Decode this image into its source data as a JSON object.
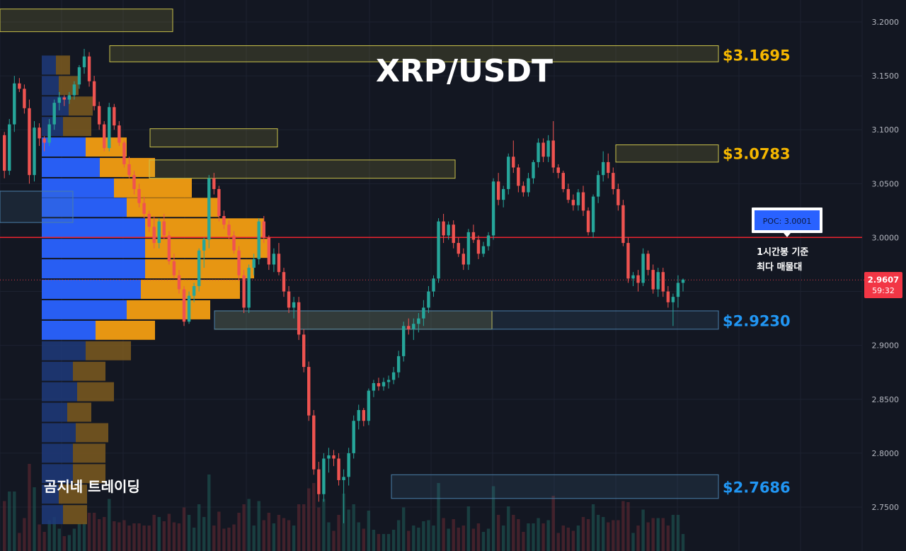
{
  "chart_data": {
    "type": "candlestick",
    "title": "XRP/USDT",
    "watermark": "곰지네 트레이딩",
    "ylim": [
      2.725,
      3.225
    ],
    "y_ticks": [
      "3.2000",
      "3.1500",
      "3.1000",
      "3.0500",
      "3.0000",
      "2.9500",
      "2.9000",
      "2.8500",
      "2.8000",
      "2.7500"
    ],
    "last_price": "2.9607",
    "countdown": "59:32",
    "poc": {
      "label": "POC: 3.0001",
      "value": 3.0001,
      "note_line1": "1시간봉 기준",
      "note_line2": "최다 매물대"
    },
    "levels": [
      {
        "label": "$3.1695",
        "value": 3.1695,
        "color": "#f5b700"
      },
      {
        "label": "$3.0783",
        "value": 3.0783,
        "color": "#f5b700"
      },
      {
        "label": "$2.9230",
        "value": 2.923,
        "color": "#2196f3"
      },
      {
        "label": "$2.7686",
        "value": 2.7686,
        "color": "#2196f3"
      }
    ],
    "candles": [
      [
        3.095,
        3.098,
        3.055,
        3.062
      ],
      [
        3.062,
        3.11,
        3.058,
        3.105
      ],
      [
        3.105,
        3.15,
        3.098,
        3.143
      ],
      [
        3.143,
        3.148,
        3.135,
        3.138
      ],
      [
        3.138,
        3.142,
        3.115,
        3.12
      ],
      [
        3.12,
        3.128,
        3.05,
        3.058
      ],
      [
        3.058,
        3.108,
        3.052,
        3.102
      ],
      [
        3.102,
        3.106,
        3.085,
        3.092
      ],
      [
        3.092,
        3.094,
        3.08,
        3.088
      ],
      [
        3.088,
        3.11,
        3.085,
        3.105
      ],
      [
        3.105,
        3.128,
        3.1,
        3.125
      ],
      [
        3.125,
        3.135,
        3.118,
        3.13
      ],
      [
        3.13,
        3.132,
        3.122,
        3.128
      ],
      [
        3.128,
        3.135,
        3.124,
        3.132
      ],
      [
        3.132,
        3.145,
        3.128,
        3.142
      ],
      [
        3.142,
        3.16,
        3.138,
        3.158
      ],
      [
        3.158,
        3.175,
        3.152,
        3.168
      ],
      [
        3.168,
        3.172,
        3.14,
        3.145
      ],
      [
        3.145,
        3.15,
        3.118,
        3.122
      ],
      [
        3.122,
        3.126,
        3.1,
        3.105
      ],
      [
        3.105,
        3.108,
        3.08,
        3.083
      ],
      [
        3.083,
        3.125,
        3.08,
        3.121
      ],
      [
        3.121,
        3.124,
        3.1,
        3.104
      ],
      [
        3.104,
        3.108,
        3.085,
        3.088
      ],
      [
        3.088,
        3.09,
        3.065,
        3.068
      ],
      [
        3.068,
        3.075,
        3.055,
        3.058
      ],
      [
        3.058,
        3.062,
        3.04,
        3.045
      ],
      [
        3.045,
        3.05,
        3.028,
        3.032
      ],
      [
        3.032,
        3.038,
        3.018,
        3.022
      ],
      [
        3.022,
        3.025,
        3.005,
        3.01
      ],
      [
        3.01,
        3.02,
        2.99,
        2.995
      ],
      [
        2.995,
        3.018,
        2.99,
        3.015
      ],
      [
        3.015,
        3.022,
        2.998,
        3.002
      ],
      [
        3.002,
        3.006,
        2.975,
        2.978
      ],
      [
        2.978,
        2.985,
        2.962,
        2.965
      ],
      [
        2.965,
        2.97,
        2.948,
        2.952
      ],
      [
        2.952,
        2.955,
        2.918,
        2.922
      ],
      [
        2.922,
        2.95,
        2.92,
        2.946
      ],
      [
        2.946,
        2.958,
        2.94,
        2.955
      ],
      [
        2.955,
        2.99,
        2.95,
        2.988
      ],
      [
        2.988,
        3.0,
        2.972,
        2.998
      ],
      [
        2.998,
        3.058,
        2.99,
        3.055
      ],
      [
        3.055,
        3.06,
        3.04,
        3.045
      ],
      [
        3.045,
        3.048,
        3.015,
        3.02
      ],
      [
        3.02,
        3.025,
        3.008,
        3.012
      ],
      [
        3.012,
        3.016,
        2.998,
        3.002
      ],
      [
        3.002,
        3.006,
        2.985,
        2.988
      ],
      [
        2.988,
        2.992,
        2.96,
        2.965
      ],
      [
        2.965,
        2.97,
        2.93,
        2.935
      ],
      [
        2.935,
        2.975,
        2.93,
        2.972
      ],
      [
        2.972,
        2.985,
        2.965,
        2.98
      ],
      [
        2.98,
        3.018,
        2.975,
        3.015
      ],
      [
        3.015,
        3.02,
        2.995,
        3.0
      ],
      [
        3.0,
        3.002,
        2.97,
        2.975
      ],
      [
        2.975,
        2.99,
        2.968,
        2.985
      ],
      [
        2.985,
        2.995,
        2.965,
        2.968
      ],
      [
        2.968,
        2.972,
        2.945,
        2.95
      ],
      [
        2.95,
        2.955,
        2.93,
        2.935
      ],
      [
        2.935,
        2.945,
        2.925,
        2.94
      ],
      [
        2.94,
        2.945,
        2.905,
        2.91
      ],
      [
        2.91,
        2.915,
        2.875,
        2.88
      ],
      [
        2.88,
        2.885,
        2.83,
        2.835
      ],
      [
        2.835,
        2.84,
        2.78,
        2.785
      ],
      [
        2.785,
        2.792,
        2.755,
        2.762
      ],
      [
        2.762,
        2.8,
        2.755,
        2.795
      ],
      [
        2.795,
        2.805,
        2.782,
        2.798
      ],
      [
        2.798,
        2.803,
        2.788,
        2.795
      ],
      [
        2.795,
        2.8,
        2.77,
        2.775
      ],
      [
        2.775,
        2.785,
        2.735,
        2.778
      ],
      [
        2.778,
        2.805,
        2.77,
        2.8
      ],
      [
        2.8,
        2.835,
        2.795,
        2.83
      ],
      [
        2.83,
        2.845,
        2.822,
        2.84
      ],
      [
        2.84,
        2.842,
        2.825,
        2.83
      ],
      [
        2.83,
        2.86,
        2.826,
        2.858
      ],
      [
        2.858,
        2.868,
        2.852,
        2.865
      ],
      [
        2.865,
        2.87,
        2.858,
        2.862
      ],
      [
        2.862,
        2.87,
        2.858,
        2.866
      ],
      [
        2.866,
        2.872,
        2.86,
        2.868
      ],
      [
        2.868,
        2.88,
        2.864,
        2.875
      ],
      [
        2.875,
        2.895,
        2.87,
        2.89
      ],
      [
        2.89,
        2.922,
        2.885,
        2.918
      ],
      [
        2.918,
        2.925,
        2.91,
        2.915
      ],
      [
        2.915,
        2.925,
        2.905,
        2.92
      ],
      [
        2.92,
        2.93,
        2.912,
        2.925
      ],
      [
        2.925,
        2.942,
        2.918,
        2.935
      ],
      [
        2.935,
        2.955,
        2.93,
        2.95
      ],
      [
        2.95,
        2.965,
        2.945,
        2.962
      ],
      [
        2.962,
        3.018,
        2.958,
        3.015
      ],
      [
        3.015,
        3.022,
        2.995,
        3.002
      ],
      [
        3.002,
        3.015,
        2.998,
        3.012
      ],
      [
        3.012,
        3.016,
        2.99,
        2.995
      ],
      [
        2.995,
        3.0,
        2.982,
        2.985
      ],
      [
        2.985,
        2.99,
        2.97,
        2.975
      ],
      [
        2.975,
        3.008,
        2.97,
        3.005
      ],
      [
        3.005,
        3.012,
        2.995,
        2.998
      ],
      [
        2.998,
        3.002,
        2.98,
        2.985
      ],
      [
        2.985,
        2.996,
        2.982,
        2.992
      ],
      [
        2.992,
        3.005,
        2.988,
        3.002
      ],
      [
        3.002,
        3.055,
        2.998,
        3.052
      ],
      [
        3.052,
        3.06,
        3.03,
        3.035
      ],
      [
        3.035,
        3.048,
        3.028,
        3.045
      ],
      [
        3.045,
        3.078,
        3.04,
        3.075
      ],
      [
        3.075,
        3.09,
        3.06,
        3.065
      ],
      [
        3.065,
        3.068,
        3.042,
        3.048
      ],
      [
        3.048,
        3.052,
        3.038,
        3.042
      ],
      [
        3.042,
        3.06,
        3.038,
        3.055
      ],
      [
        3.055,
        3.072,
        3.05,
        3.07
      ],
      [
        3.07,
        3.092,
        3.065,
        3.088
      ],
      [
        3.088,
        3.092,
        3.07,
        3.075
      ],
      [
        3.075,
        3.095,
        3.07,
        3.09
      ],
      [
        3.09,
        3.108,
        3.06,
        3.065
      ],
      [
        3.065,
        3.068,
        3.055,
        3.06
      ],
      [
        3.06,
        3.062,
        3.042,
        3.045
      ],
      [
        3.045,
        3.05,
        3.032,
        3.035
      ],
      [
        3.035,
        3.04,
        3.025,
        3.03
      ],
      [
        3.03,
        3.045,
        3.025,
        3.042
      ],
      [
        3.042,
        3.048,
        3.02,
        3.025
      ],
      [
        3.025,
        3.028,
        3.002,
        3.005
      ],
      [
        3.005,
        3.04,
        3.0,
        3.038
      ],
      [
        3.038,
        3.062,
        3.032,
        3.058
      ],
      [
        3.058,
        3.08,
        3.052,
        3.07
      ],
      [
        3.07,
        3.078,
        3.055,
        3.06
      ],
      [
        3.06,
        3.065,
        3.04,
        3.045
      ],
      [
        3.045,
        3.05,
        3.025,
        3.03
      ],
      [
        3.03,
        3.035,
        2.992,
        2.995
      ],
      [
        2.995,
        3.0,
        2.958,
        2.962
      ],
      [
        2.962,
        2.968,
        2.955,
        2.965
      ],
      [
        2.965,
        2.97,
        2.95,
        2.958
      ],
      [
        2.958,
        2.99,
        2.955,
        2.985
      ],
      [
        2.985,
        2.988,
        2.965,
        2.97
      ],
      [
        2.97,
        2.975,
        2.948,
        2.952
      ],
      [
        2.952,
        2.972,
        2.945,
        2.968
      ],
      [
        2.968,
        2.972,
        2.945,
        2.95
      ],
      [
        2.95,
        2.955,
        2.935,
        2.94
      ],
      [
        2.94,
        2.948,
        2.918,
        2.945
      ],
      [
        2.945,
        2.965,
        2.935,
        2.958
      ],
      [
        2.958,
        2.962,
        2.95,
        2.961
      ]
    ],
    "volume_profile": [
      {
        "price": 3.16,
        "buy": 20,
        "sell": 20
      },
      {
        "price": 3.141,
        "buy": 24,
        "sell": 28
      },
      {
        "price": 3.122,
        "buy": 38,
        "sell": 34
      },
      {
        "price": 3.103,
        "buy": 30,
        "sell": 40
      },
      {
        "price": 3.084,
        "buy": 62,
        "sell": 58
      },
      {
        "price": 3.065,
        "buy": 82,
        "sell": 78
      },
      {
        "price": 3.046,
        "buy": 102,
        "sell": 110
      },
      {
        "price": 3.028,
        "buy": 120,
        "sell": 130
      },
      {
        "price": 3.009,
        "buy": 146,
        "sell": 168
      },
      {
        "price": 2.99,
        "buy": 146,
        "sell": 174
      },
      {
        "price": 2.971,
        "buy": 146,
        "sell": 154
      },
      {
        "price": 2.952,
        "buy": 140,
        "sell": 140
      },
      {
        "price": 2.933,
        "buy": 120,
        "sell": 118
      },
      {
        "price": 2.914,
        "buy": 76,
        "sell": 84
      },
      {
        "price": 2.895,
        "buy": 62,
        "sell": 64
      },
      {
        "price": 2.876,
        "buy": 44,
        "sell": 46
      },
      {
        "price": 2.857,
        "buy": 50,
        "sell": 52
      },
      {
        "price": 2.838,
        "buy": 36,
        "sell": 34
      },
      {
        "price": 2.819,
        "buy": 48,
        "sell": 46
      },
      {
        "price": 2.8,
        "buy": 44,
        "sell": 46
      },
      {
        "price": 2.781,
        "buy": 44,
        "sell": 46
      },
      {
        "price": 2.762,
        "buy": 24,
        "sell": 40
      },
      {
        "price": 2.743,
        "buy": 30,
        "sell": 34
      }
    ],
    "zones": [
      {
        "top": 3.212,
        "bottom": 3.191,
        "color": "#c8c04a"
      },
      {
        "top": 3.178,
        "bottom": 3.163,
        "color": "#c8c04a"
      },
      {
        "top": 3.101,
        "bottom": 3.084,
        "color": "#c8c04a"
      },
      {
        "top": 3.086,
        "bottom": 3.07,
        "color": "#c8c04a"
      },
      {
        "top": 3.072,
        "bottom": 3.055,
        "color": "#c8c04a"
      },
      {
        "top": 2.932,
        "bottom": 2.915,
        "color": "#c8c04a"
      },
      {
        "top": 2.932,
        "bottom": 2.915,
        "color": "#4a7ea8"
      },
      {
        "top": 2.78,
        "bottom": 2.758,
        "color": "#4a7ea8"
      },
      {
        "top": 3.043,
        "bottom": 3.014,
        "color": "#4a7ea8"
      }
    ]
  }
}
